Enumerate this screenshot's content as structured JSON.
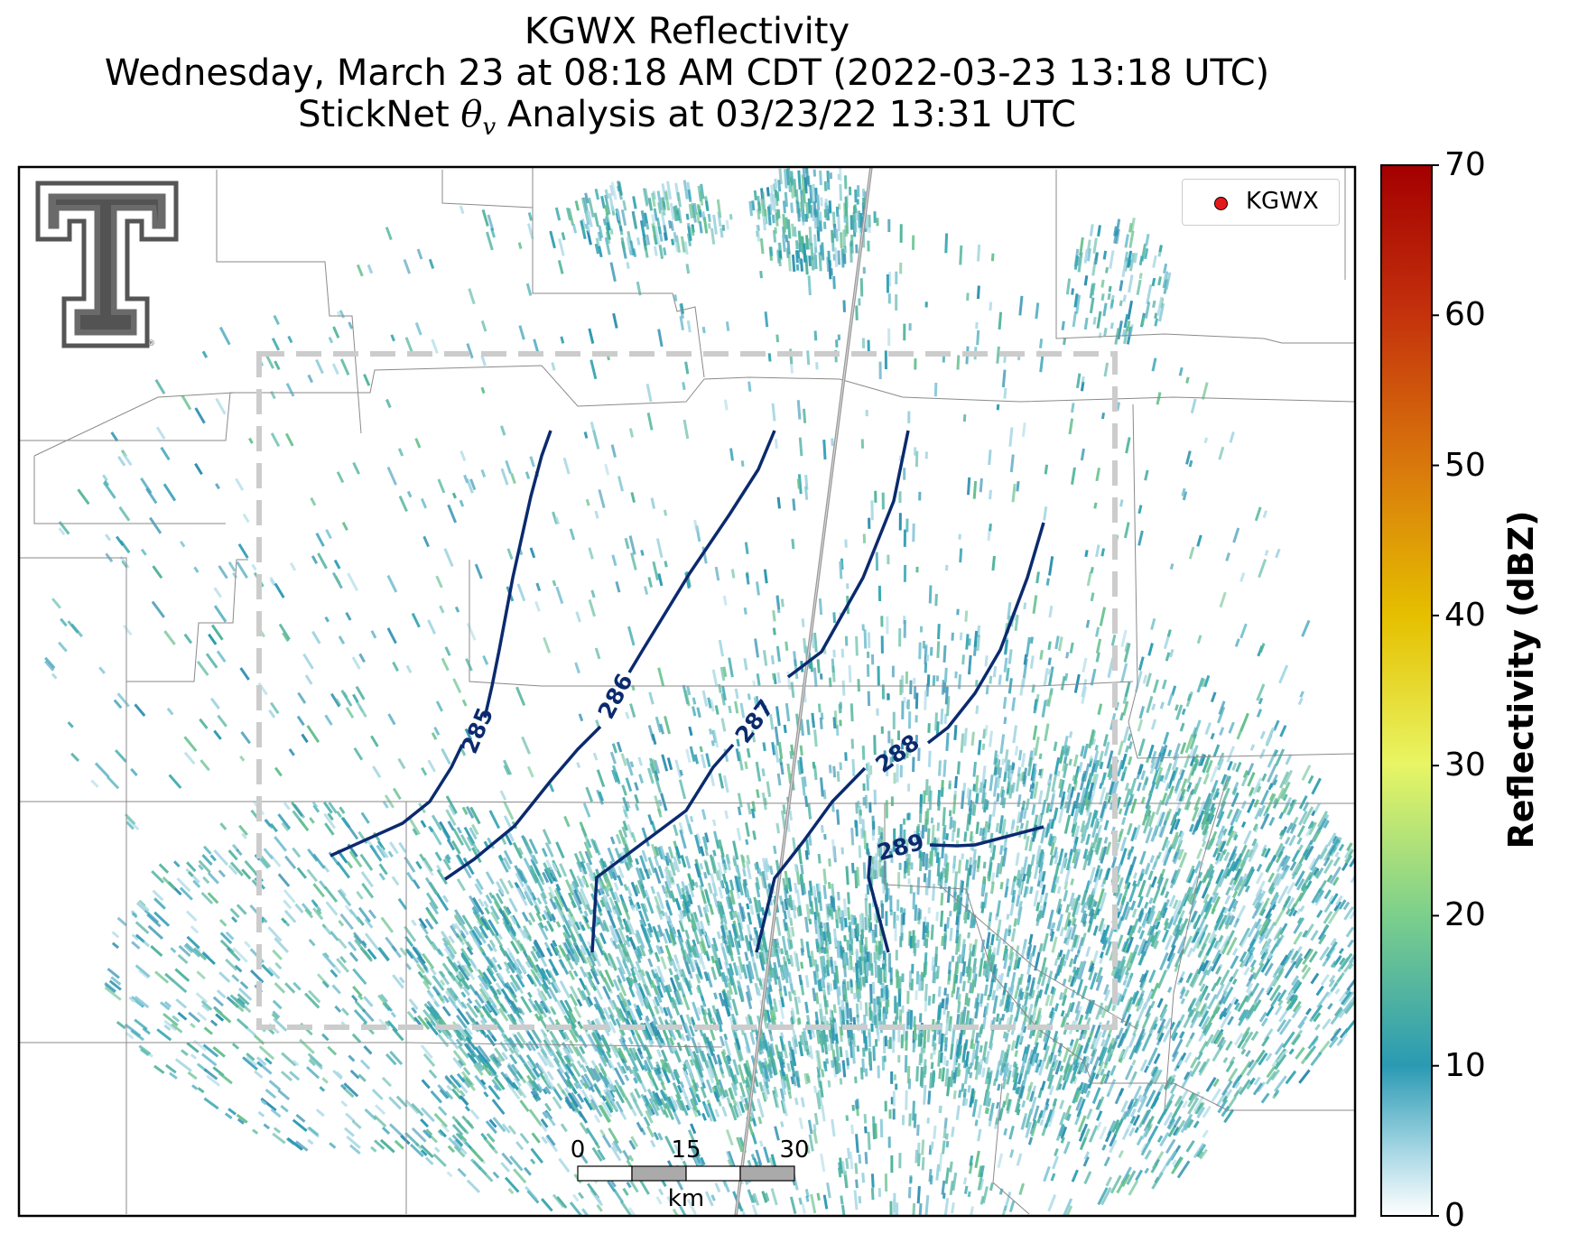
{
  "title": {
    "line1": "KGWX Reflectivity",
    "line2": "Wednesday, March 23 at 08:18 AM CDT (2022-03-23 13:18 UTC)",
    "line3_prefix": "StickNet ",
    "line3_symbol": "θ",
    "line3_subscript": "v",
    "line3_suffix": " Analysis at 03/23/22 13:31 UTC"
  },
  "legend": {
    "label": "KGWX",
    "marker_color": "#e6191a"
  },
  "colorbar": {
    "label": "Reflectivity (dBZ)",
    "ticks": [
      "0",
      "10",
      "20",
      "30",
      "40",
      "50",
      "60",
      "70"
    ],
    "colors": [
      "#ffffff",
      "#2a9ab3",
      "#7ccf8c",
      "#e8f564",
      "#e5c000",
      "#d97a0c",
      "#c4310c",
      "#a30000"
    ]
  },
  "contours": [
    {
      "value": "285",
      "label": "285"
    },
    {
      "value": "286",
      "label": "286"
    },
    {
      "value": "287",
      "label": "287"
    },
    {
      "value": "288",
      "label": "288"
    },
    {
      "value": "289",
      "label": "289"
    }
  ],
  "contour_color": "#0b2a6e",
  "scale_bar": {
    "ticks": [
      "0",
      "15",
      "30"
    ],
    "unit": "km"
  },
  "logo": {
    "name": "Texas Tech Double T"
  }
}
